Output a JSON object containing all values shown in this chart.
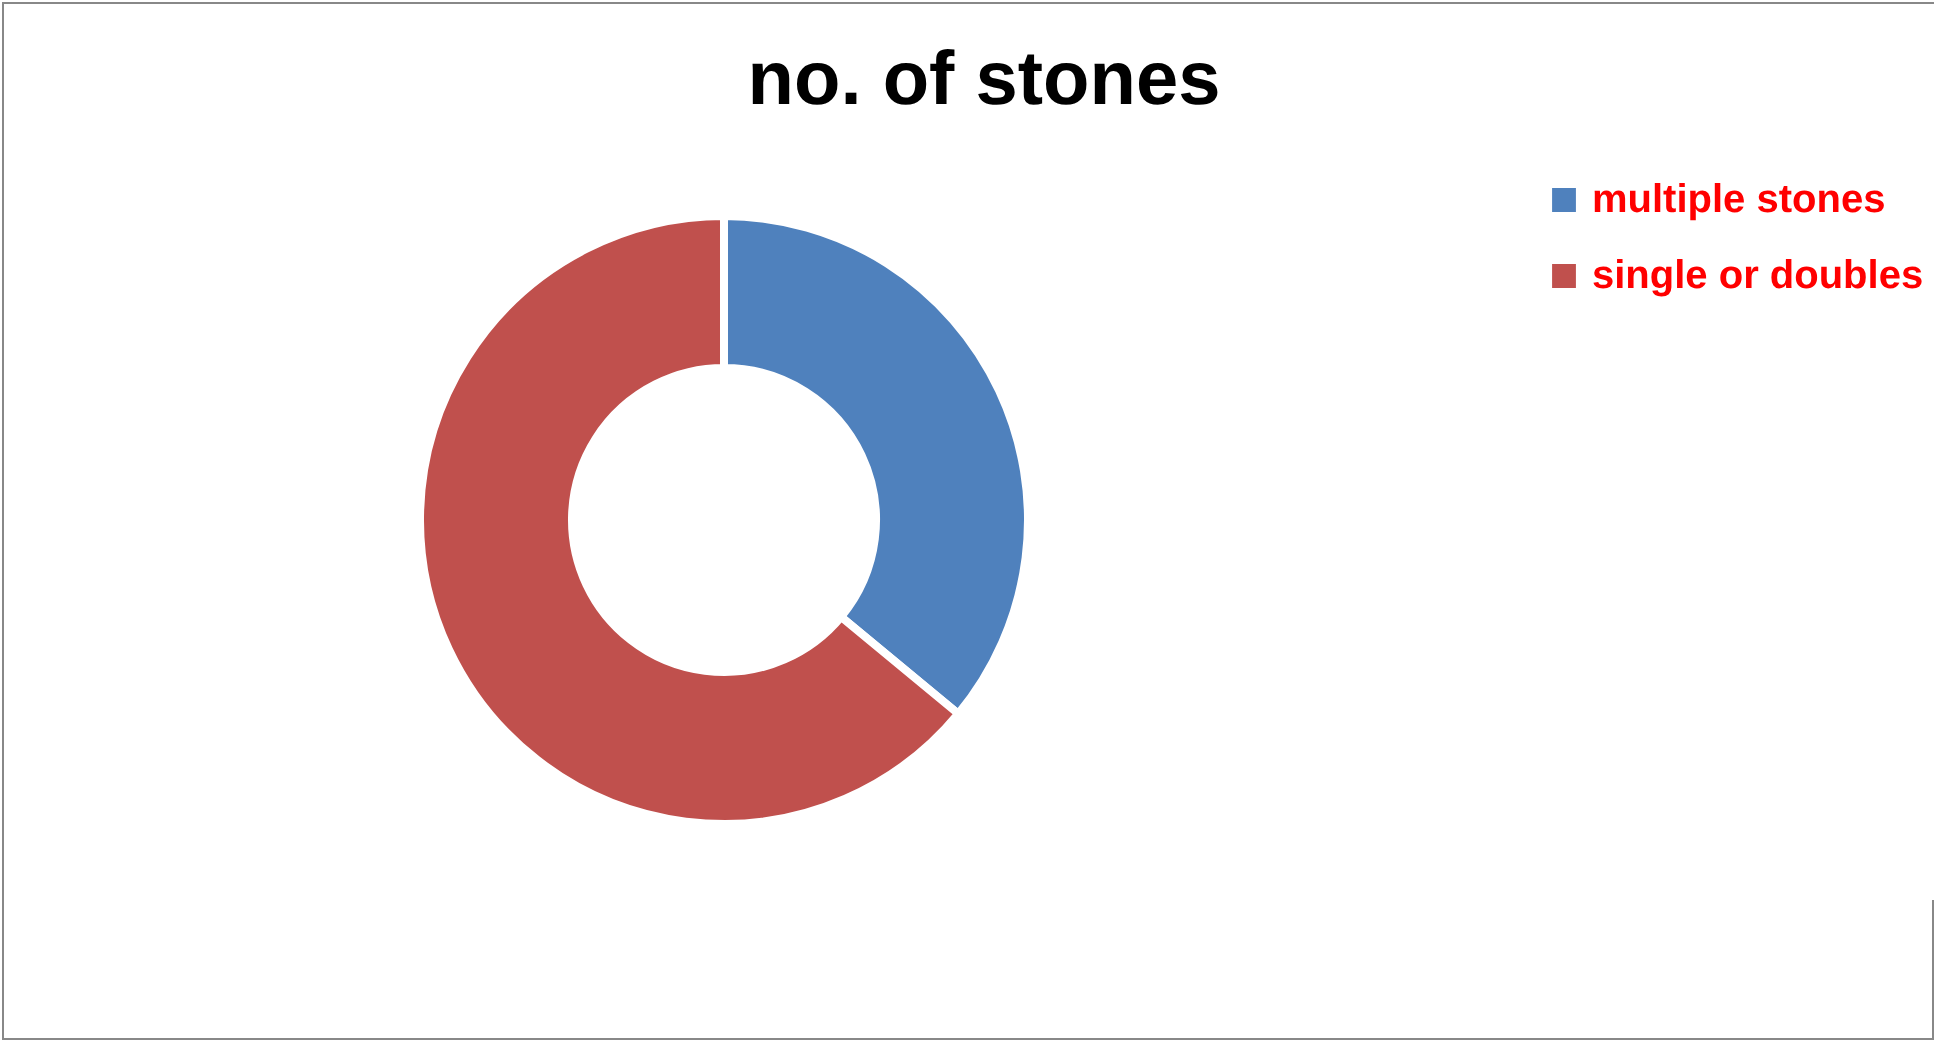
{
  "chart_data": {
    "type": "donut",
    "title": "no. of stones",
    "categories": [
      "multiple stones",
      "single or doubles"
    ],
    "values": [
      36,
      64
    ],
    "colors": [
      "#4f81bd",
      "#c0504d"
    ],
    "legend": "right"
  }
}
